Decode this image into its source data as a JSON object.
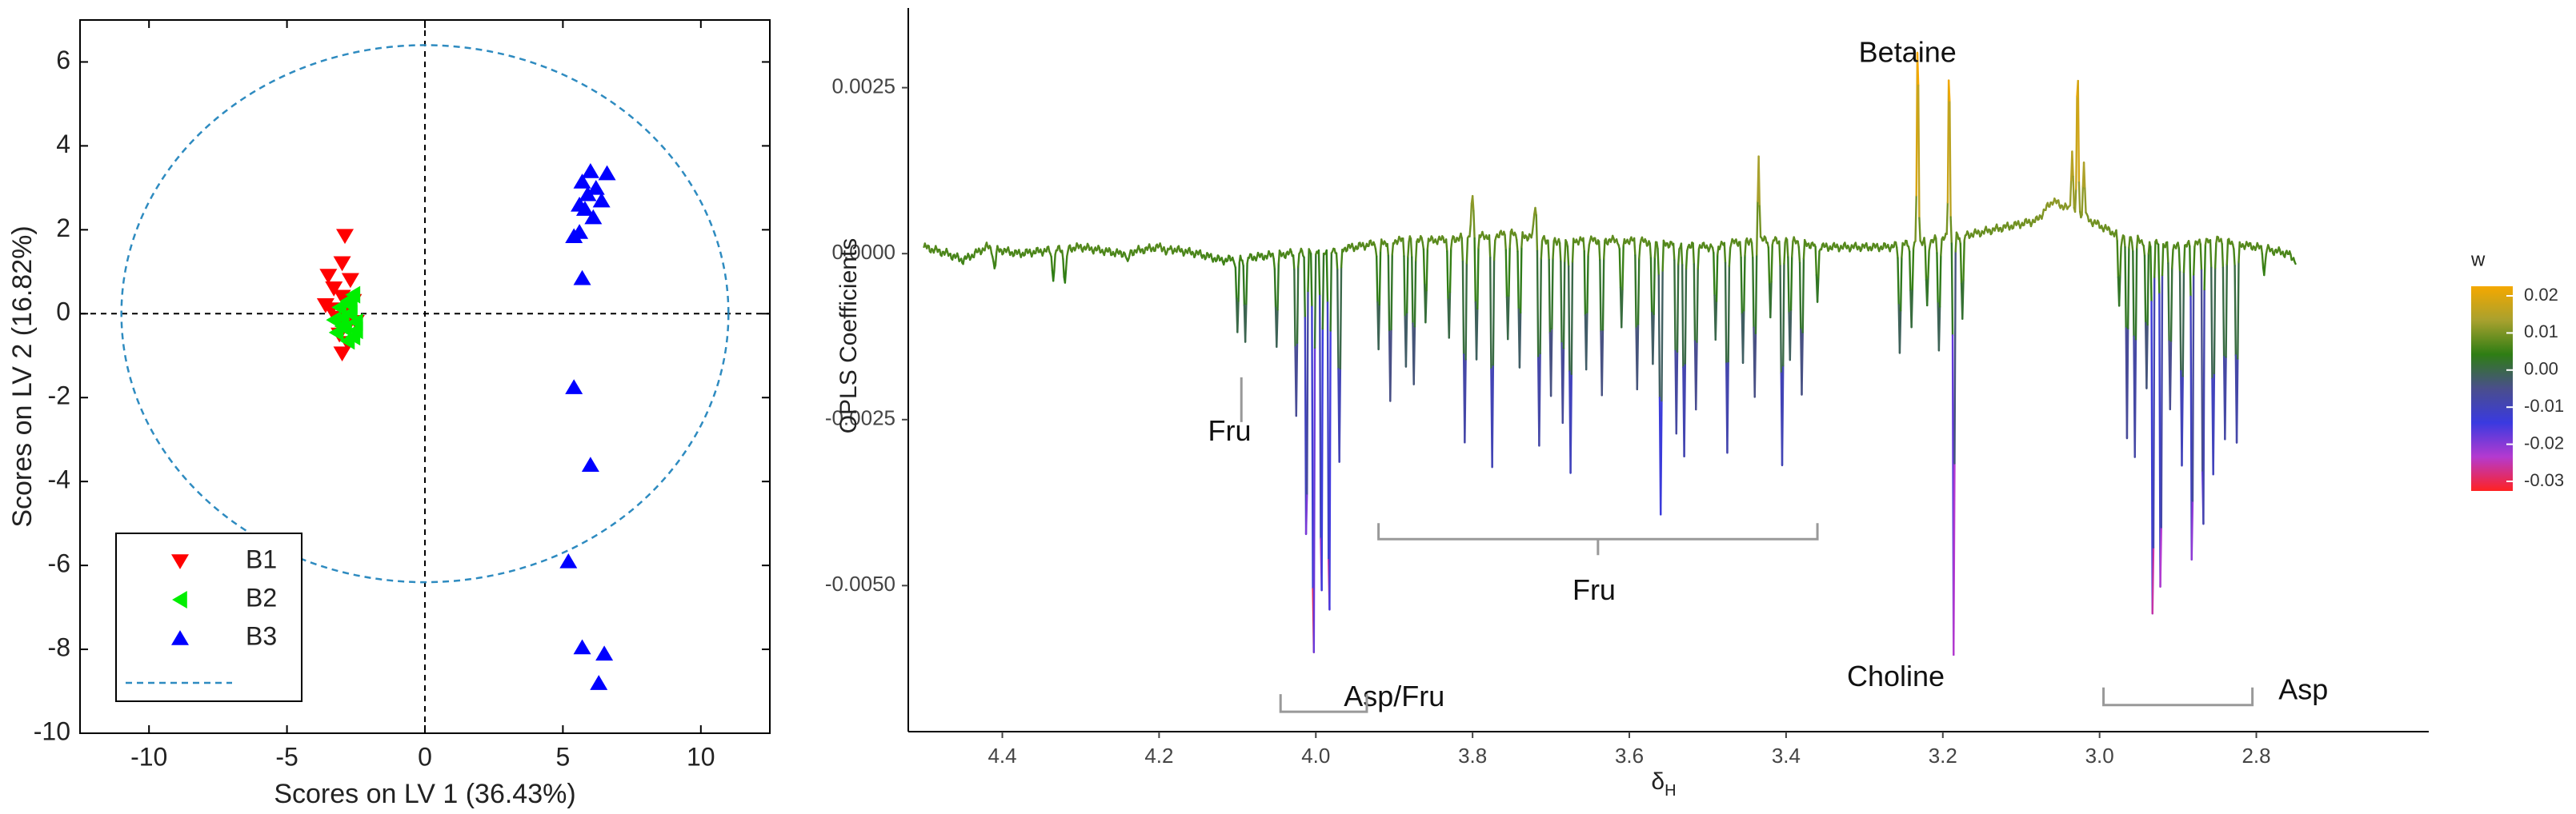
{
  "chart_data": [
    {
      "type": "scatter",
      "xlabel": "Scores on LV 1 (36.43%)",
      "ylabel": "Scores on LV 2 (16.82%)",
      "xlim": [
        -12.5,
        12.5
      ],
      "ylim": [
        -10,
        7
      ],
      "xticks": [
        "-10",
        "-5",
        "0",
        "5",
        "10"
      ],
      "yticks": [
        "-10",
        "-8",
        "-6",
        "-4",
        "-2",
        "0",
        "2",
        "4",
        "6"
      ],
      "ellipse": {
        "cx": 0,
        "cy": 0,
        "rx": 11,
        "ry": 6.4,
        "color": "#2e8bc0",
        "style": "dashed"
      },
      "reference_lines": {
        "x": 0,
        "y": 0,
        "style": "dashed",
        "color": "#000000"
      },
      "legend": {
        "placement": "bottom-left",
        "entries": [
          {
            "label": "B1",
            "marker": "triangle-down",
            "color": "#ff0000"
          },
          {
            "label": "B2",
            "marker": "triangle-left",
            "color": "#00ee00"
          },
          {
            "label": "B3",
            "marker": "triangle-up",
            "color": "#0000ff"
          },
          {
            "label": "",
            "marker": "dashed-line",
            "color": "#2e8bc0"
          }
        ]
      },
      "series": [
        {
          "name": "B1",
          "marker": "triangle-down",
          "color": "#ff0000",
          "points": [
            [
              -2.9,
              1.85
            ],
            [
              -3.5,
              0.9
            ],
            [
              -3.0,
              1.2
            ],
            [
              -2.7,
              0.8
            ],
            [
              -3.3,
              0.6
            ],
            [
              -3.0,
              0.4
            ],
            [
              -2.6,
              0.3
            ],
            [
              -3.4,
              0.1
            ],
            [
              -3.2,
              -0.1
            ],
            [
              -2.9,
              0.0
            ],
            [
              -2.8,
              -0.3
            ],
            [
              -3.1,
              -0.5
            ],
            [
              -2.8,
              -0.7
            ],
            [
              -3.0,
              -0.95
            ],
            [
              -3.6,
              0.2
            ],
            [
              -2.5,
              -0.2
            ]
          ]
        },
        {
          "name": "B2",
          "marker": "triangle-left",
          "color": "#00ee00",
          "points": [
            [
              -2.6,
              0.45
            ],
            [
              -2.8,
              0.3
            ],
            [
              -3.1,
              0.15
            ],
            [
              -2.7,
              0.0
            ],
            [
              -3.0,
              -0.1
            ],
            [
              -2.5,
              -0.2
            ],
            [
              -2.9,
              -0.35
            ],
            [
              -3.2,
              -0.45
            ],
            [
              -2.6,
              -0.55
            ],
            [
              -2.8,
              -0.65
            ],
            [
              -3.0,
              -0.3
            ],
            [
              -2.7,
              0.2
            ],
            [
              -3.3,
              -0.15
            ],
            [
              -2.5,
              -0.4
            ]
          ]
        },
        {
          "name": "B3",
          "marker": "triangle-up",
          "color": "#0000ff",
          "points": [
            [
              6.0,
              3.4
            ],
            [
              6.6,
              3.35
            ],
            [
              5.7,
              3.15
            ],
            [
              6.2,
              3.0
            ],
            [
              5.9,
              2.85
            ],
            [
              6.4,
              2.7
            ],
            [
              5.6,
              2.6
            ],
            [
              5.8,
              2.5
            ],
            [
              6.1,
              2.3
            ],
            [
              5.6,
              1.95
            ],
            [
              5.4,
              1.85
            ],
            [
              5.7,
              0.85
            ],
            [
              5.4,
              -1.75
            ],
            [
              6.0,
              -3.6
            ],
            [
              5.2,
              -5.9
            ],
            [
              5.7,
              -7.95
            ],
            [
              6.5,
              -8.1
            ],
            [
              6.3,
              -8.8
            ]
          ]
        }
      ]
    },
    {
      "type": "line",
      "xlabel": "δH",
      "xlabel_main": "δ",
      "xlabel_sub": "H",
      "ylabel": "OPLS Coefficients",
      "xlim": [
        4.52,
        2.58
      ],
      "ylim": [
        -0.0072,
        0.0037
      ],
      "x_reversed": true,
      "xticks": [
        "4.4",
        "4.2",
        "4.0",
        "3.8",
        "3.6",
        "3.4",
        "3.2",
        "3.0",
        "2.8"
      ],
      "yticks": [
        "0.0025",
        "0.0000",
        "-0.0025",
        "-0.0050"
      ],
      "colorbar": {
        "title": "w",
        "ticks": [
          "0.02",
          "0.01",
          "0.00",
          "-0.01",
          "-0.02",
          "-0.03"
        ],
        "stops": [
          "#f5a800",
          "#a8a12e",
          "#2e7d14",
          "#4a4e8c",
          "#3a3ae0",
          "#b43ad0",
          "#ff2222"
        ]
      },
      "annotations": [
        {
          "text": "Betaine",
          "x": 3.245,
          "y": 0.003
        },
        {
          "text": "Fru",
          "x": 4.11,
          "y": -0.0027
        },
        {
          "text": "Fru",
          "x": 3.645,
          "y": -0.0051
        },
        {
          "text": "Asp/Fru",
          "x": 3.9,
          "y": -0.0067
        },
        {
          "text": "Choline",
          "x": 3.26,
          "y": -0.0064
        },
        {
          "text": "Asp",
          "x": 2.74,
          "y": -0.0066
        }
      ],
      "brackets": [
        {
          "x0": 4.095,
          "x1": 4.095,
          "y": -0.0022,
          "kind": "tick"
        },
        {
          "x0": 3.92,
          "x1": 3.36,
          "y": -0.0043,
          "kind": "bracket-up"
        },
        {
          "x0": 4.045,
          "x1": 3.935,
          "y": -0.0069,
          "kind": "bracket-down"
        },
        {
          "x0": 2.995,
          "x1": 2.805,
          "y": -0.0068,
          "kind": "bracket-down"
        }
      ],
      "baseline_noise": [
        [
          4.5,
          0.0001
        ],
        [
          4.47,
          0.0
        ],
        [
          4.45,
          -0.0001
        ],
        [
          4.42,
          0.0001
        ],
        [
          4.38,
          0.0
        ],
        [
          4.3,
          0.0001
        ],
        [
          4.25,
          0.0
        ],
        [
          4.2,
          0.0001
        ],
        [
          4.15,
          0.0
        ],
        [
          4.12,
          -0.0001
        ],
        [
          3.95,
          0.0001
        ],
        [
          3.9,
          0.0002
        ],
        [
          3.85,
          0.0002
        ],
        [
          3.75,
          0.0003
        ],
        [
          3.7,
          0.0002
        ],
        [
          3.6,
          0.0002
        ],
        [
          3.5,
          0.0001
        ],
        [
          3.45,
          0.0002
        ],
        [
          3.4,
          0.0002
        ],
        [
          3.35,
          0.0001
        ],
        [
          3.3,
          0.0001
        ],
        [
          3.27,
          0.0001
        ],
        [
          3.16,
          0.0003
        ],
        [
          3.12,
          0.0004
        ],
        [
          3.08,
          0.0005
        ],
        [
          3.06,
          0.0008
        ],
        [
          2.98,
          0.0003
        ],
        [
          2.95,
          0.0002
        ],
        [
          2.9,
          0.0001
        ],
        [
          2.85,
          0.0002
        ],
        [
          2.8,
          0.0001
        ],
        [
          2.76,
          0.0
        ],
        [
          2.75,
          -0.0001
        ]
      ],
      "peaks": [
        [
          4.41,
          -0.0003,
          0.004
        ],
        [
          4.335,
          -0.0004,
          0.004
        ],
        [
          4.32,
          -0.0005,
          0.004
        ],
        [
          4.24,
          -0.0002,
          0.003
        ],
        [
          4.19,
          -0.0001,
          0.003
        ],
        [
          4.1,
          -0.0011,
          0.003
        ],
        [
          4.09,
          -0.0012,
          0.003
        ],
        [
          4.05,
          -0.0014,
          0.003
        ],
        [
          4.025,
          -0.0024,
          0.003
        ],
        [
          4.012,
          -0.0048,
          0.0025
        ],
        [
          4.003,
          -0.0068,
          0.0025
        ],
        [
          3.993,
          -0.0058,
          0.0025
        ],
        [
          3.983,
          -0.0062,
          0.0025
        ],
        [
          3.97,
          -0.0032,
          0.003
        ],
        [
          3.92,
          -0.0016,
          0.003
        ],
        [
          3.905,
          -0.0024,
          0.003
        ],
        [
          3.885,
          -0.0019,
          0.003
        ],
        [
          3.875,
          -0.0022,
          0.003
        ],
        [
          3.86,
          -0.0012,
          0.003
        ],
        [
          3.83,
          -0.0015,
          0.003
        ],
        [
          3.81,
          -0.0031,
          0.003
        ],
        [
          3.795,
          -0.0018,
          0.003
        ],
        [
          3.775,
          -0.0035,
          0.003
        ],
        [
          3.755,
          -0.0016,
          0.003
        ],
        [
          3.74,
          -0.002,
          0.003
        ],
        [
          3.715,
          -0.0031,
          0.003
        ],
        [
          3.7,
          -0.0024,
          0.003
        ],
        [
          3.685,
          -0.0028,
          0.003
        ],
        [
          3.675,
          -0.0035,
          0.003
        ],
        [
          3.655,
          -0.0019,
          0.003
        ],
        [
          3.635,
          -0.0024,
          0.003
        ],
        [
          3.61,
          -0.0013,
          0.003
        ],
        [
          3.59,
          -0.0022,
          0.003
        ],
        [
          3.57,
          -0.0019,
          0.003
        ],
        [
          3.56,
          -0.0041,
          0.003
        ],
        [
          3.54,
          -0.0028,
          0.003
        ],
        [
          3.53,
          -0.0032,
          0.003
        ],
        [
          3.515,
          -0.0025,
          0.003
        ],
        [
          3.49,
          -0.0014,
          0.003
        ],
        [
          3.475,
          -0.0031,
          0.003
        ],
        [
          3.455,
          -0.0019,
          0.003
        ],
        [
          3.44,
          -0.0024,
          0.003
        ],
        [
          3.42,
          -0.0011,
          0.003
        ],
        [
          3.405,
          -0.0034,
          0.003
        ],
        [
          3.395,
          -0.0018,
          0.003
        ],
        [
          3.38,
          -0.0023,
          0.003
        ],
        [
          3.36,
          -0.0008,
          0.003
        ],
        [
          3.435,
          0.0013,
          0.0025
        ],
        [
          3.8,
          0.0006,
          0.004
        ],
        [
          3.72,
          0.0005,
          0.004
        ],
        [
          3.255,
          -0.0016,
          0.003
        ],
        [
          3.24,
          -0.0012,
          0.003
        ],
        [
          3.232,
          0.0032,
          0.0025
        ],
        [
          3.22,
          -0.001,
          0.003
        ],
        [
          3.205,
          -0.0017,
          0.003
        ],
        [
          3.192,
          0.0027,
          0.0025
        ],
        [
          3.186,
          -0.0066,
          0.0022
        ],
        [
          3.175,
          -0.0012,
          0.003
        ],
        [
          3.035,
          0.0009,
          0.003
        ],
        [
          3.028,
          0.0023,
          0.0025
        ],
        [
          3.02,
          0.0008,
          0.003
        ],
        [
          2.975,
          -0.0011,
          0.003
        ],
        [
          2.965,
          -0.0031,
          0.0025
        ],
        [
          2.955,
          -0.0033,
          0.0025
        ],
        [
          2.94,
          -0.0022,
          0.003
        ],
        [
          2.932,
          -0.0066,
          0.0022
        ],
        [
          2.922,
          -0.0061,
          0.0022
        ],
        [
          2.91,
          -0.0025,
          0.003
        ],
        [
          2.895,
          -0.0033,
          0.003
        ],
        [
          2.882,
          -0.0056,
          0.0022
        ],
        [
          2.868,
          -0.005,
          0.0022
        ],
        [
          2.855,
          -0.0035,
          0.003
        ],
        [
          2.84,
          -0.003,
          0.003
        ],
        [
          2.825,
          -0.003,
          0.003
        ],
        [
          2.79,
          -0.0004,
          0.003
        ]
      ]
    }
  ]
}
